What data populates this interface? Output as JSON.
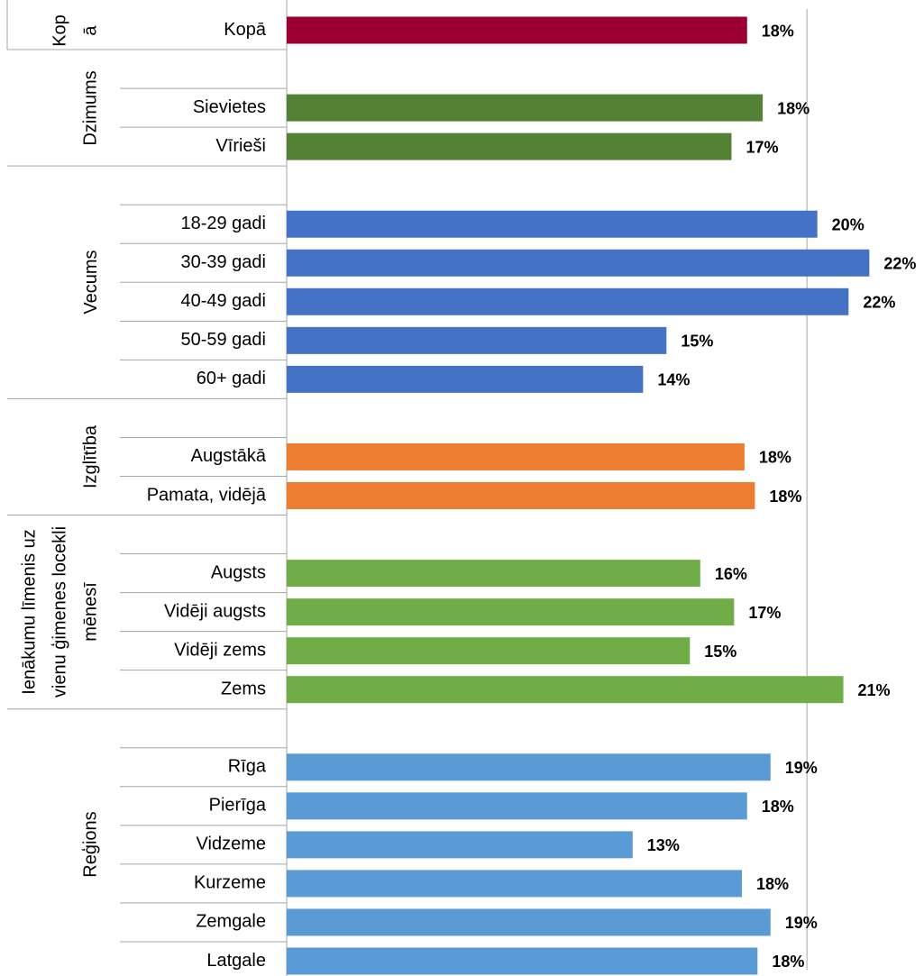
{
  "chart_data": {
    "type": "bar",
    "orientation": "horizontal",
    "categories": [
      "Kopā",
      null,
      "Sievietes",
      "Vīrieši",
      null,
      "18-29 gadi",
      "30-39 gadi",
      "40-49 gadi",
      "50-59 gadi",
      "60+ gadi",
      null,
      "Augstākā",
      "Pamata, vidējā",
      null,
      "Augsts",
      "Vidēji augsts",
      "Vidēji zems",
      "Zems",
      null,
      "Rīga",
      "Pierīga",
      "Vidzeme",
      "Kurzeme",
      "Zemgale",
      "Latgale"
    ],
    "series": [
      {
        "name": "Kopā",
        "color": "#9b0033",
        "values": [
          17.7,
          null,
          null,
          null,
          null,
          null,
          null,
          null,
          null,
          null,
          null,
          null,
          null,
          null,
          null,
          null,
          null,
          null,
          null,
          null,
          null,
          null,
          null,
          null,
          null
        ],
        "value_labels": [
          "18%",
          null,
          null,
          null,
          null,
          null,
          null,
          null,
          null,
          null,
          null,
          null,
          null,
          null,
          null,
          null,
          null,
          null,
          null,
          null,
          null,
          null,
          null,
          null,
          null
        ]
      },
      {
        "name": "Dzimums",
        "color": "#548235",
        "values": [
          null,
          null,
          18.3,
          17.1,
          null,
          null,
          null,
          null,
          null,
          null,
          null,
          null,
          null,
          null,
          null,
          null,
          null,
          null,
          null,
          null,
          null,
          null,
          null,
          null,
          null
        ],
        "value_labels": [
          null,
          null,
          "18%",
          "17%",
          null,
          null,
          null,
          null,
          null,
          null,
          null,
          null,
          null,
          null,
          null,
          null,
          null,
          null,
          null,
          null,
          null,
          null,
          null,
          null,
          null
        ]
      },
      {
        "name": "Vecums",
        "color": "#4472c4",
        "values": [
          null,
          null,
          null,
          null,
          null,
          20.4,
          22.4,
          21.6,
          14.6,
          13.7,
          null,
          null,
          null,
          null,
          null,
          null,
          null,
          null,
          null,
          null,
          null,
          null,
          null,
          null,
          null
        ],
        "value_labels": [
          null,
          null,
          null,
          null,
          null,
          "20%",
          "22%",
          "22%",
          "15%",
          "14%",
          null,
          null,
          null,
          null,
          null,
          null,
          null,
          null,
          null,
          null,
          null,
          null,
          null,
          null,
          null
        ]
      },
      {
        "name": "Izglītība",
        "color": "#ed7d31",
        "values": [
          null,
          null,
          null,
          null,
          null,
          null,
          null,
          null,
          null,
          null,
          null,
          17.6,
          18.0,
          null,
          null,
          null,
          null,
          null,
          null,
          null,
          null,
          null,
          null,
          null,
          null
        ],
        "value_labels": [
          null,
          null,
          null,
          null,
          null,
          null,
          null,
          null,
          null,
          null,
          null,
          "18%",
          "18%",
          null,
          null,
          null,
          null,
          null,
          null,
          null,
          null,
          null,
          null,
          null,
          null
        ]
      },
      {
        "name": "Ienākumu līmenis uz vienu ģimenes locekli mēnesī",
        "color": "#70ad47",
        "values": [
          null,
          null,
          null,
          null,
          null,
          null,
          null,
          null,
          null,
          null,
          null,
          null,
          null,
          null,
          15.9,
          17.2,
          15.5,
          21.4,
          null,
          null,
          null,
          null,
          null,
          null,
          null
        ],
        "value_labels": [
          null,
          null,
          null,
          null,
          null,
          null,
          null,
          null,
          null,
          null,
          null,
          null,
          null,
          null,
          "16%",
          "17%",
          "15%",
          "21%",
          null,
          null,
          null,
          null,
          null,
          null,
          null
        ]
      },
      {
        "name": "Reģions",
        "color": "#5b9bd5",
        "values": [
          null,
          null,
          null,
          null,
          null,
          null,
          null,
          null,
          null,
          null,
          null,
          null,
          null,
          null,
          null,
          null,
          null,
          null,
          null,
          18.6,
          17.7,
          13.3,
          17.5,
          18.6,
          18.1
        ],
        "value_labels": [
          null,
          null,
          null,
          null,
          null,
          null,
          null,
          null,
          null,
          null,
          null,
          null,
          null,
          null,
          null,
          null,
          null,
          null,
          null,
          "19%",
          "18%",
          "13%",
          "18%",
          "19%",
          "18%"
        ]
      }
    ],
    "xlim": [
      0,
      24.5
    ],
    "reference_line": 20
  }
}
